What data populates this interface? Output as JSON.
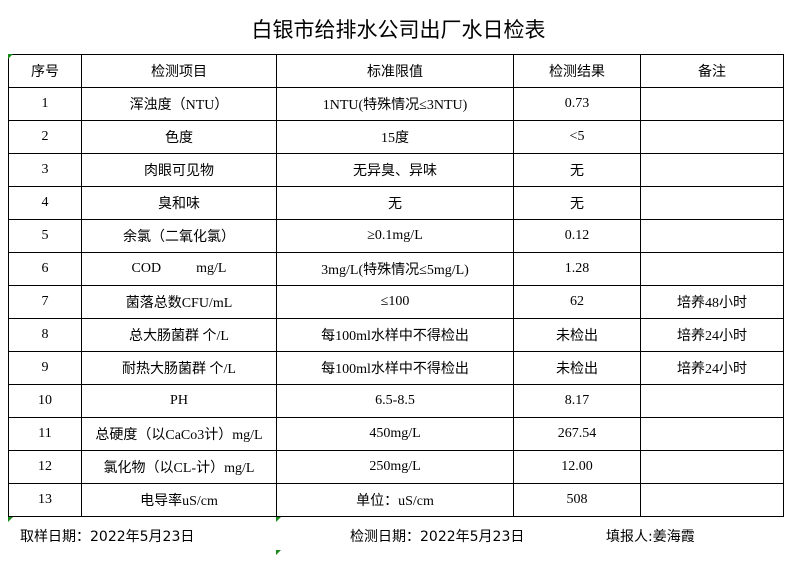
{
  "title": "白银市给排水公司出厂水日检表",
  "headers": [
    "序号",
    "检测项目",
    "标准限值",
    "检测结果",
    "备注"
  ],
  "rows": [
    [
      "1",
      "浑浊度（NTU）",
      "1NTU(特殊情况≤3NTU)",
      "0.73",
      ""
    ],
    [
      "2",
      "色度",
      "15度",
      "<5",
      ""
    ],
    [
      "3",
      "肉眼可见物",
      "无异臭、异味",
      "无",
      ""
    ],
    [
      "4",
      "臭和味",
      "无",
      "无",
      ""
    ],
    [
      "5",
      "余氯（二氧化氯）",
      "≥0.1mg/L",
      "0.12",
      ""
    ],
    [
      "6",
      "COD          mg/L",
      "3mg/L(特殊情况≤5mg/L)",
      "1.28",
      ""
    ],
    [
      "7",
      "菌落总数CFU/mL",
      "≤100",
      "62",
      "培养48小时"
    ],
    [
      "8",
      "总大肠菌群 个/L",
      "每100ml水样中不得检出",
      "未检出",
      "培养24小时"
    ],
    [
      "9",
      "耐热大肠菌群 个/L",
      "每100ml水样中不得检出",
      "未检出",
      "培养24小时"
    ],
    [
      "10",
      "PH",
      "6.5-8.5",
      "8.17",
      ""
    ],
    [
      "11",
      "总硬度（以CaCo3计）mg/L",
      "450mg/L",
      "267.54",
      ""
    ],
    [
      "12",
      "氯化物（以CL-计）mg/L",
      "250mg/L",
      "12.00",
      ""
    ],
    [
      "13",
      "电导率uS/cm",
      "单位：uS/cm",
      "508",
      ""
    ]
  ],
  "footer": {
    "sample_date": "取样日期：2022年5月23日",
    "test_date": "检测日期：2022年5月23日",
    "reporter": "填报人:姜海霞"
  }
}
